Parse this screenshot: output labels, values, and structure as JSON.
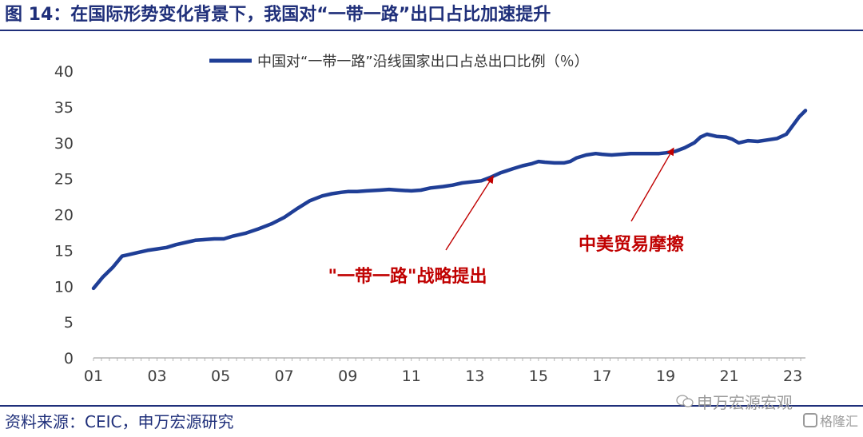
{
  "header": {
    "title": "图 14：在国际形势变化背景下，我国对“一带一路”出口占比加速提升"
  },
  "footer": {
    "source": "资料来源：CEIC，申万宏源研究",
    "watermark_wechat": "申万宏源宏观",
    "watermark_right": "格隆汇"
  },
  "colors": {
    "line": "#1f3e96",
    "title": "#1f2f7a",
    "annotation": "#c00000",
    "axis": "#a6a6a6"
  },
  "chart_data": {
    "type": "line",
    "legend": "中国对“一带一路”沿线国家出口占总出口比例（％）",
    "legend_position": "top-center",
    "grid": false,
    "xlim": [
      2001,
      2023.4
    ],
    "ylim": [
      0,
      40
    ],
    "yticks": [
      "0",
      "5",
      "10",
      "15",
      "20",
      "25",
      "30",
      "35",
      "40"
    ],
    "xtick_labels": [
      "01",
      "03",
      "05",
      "07",
      "09",
      "11",
      "13",
      "15",
      "17",
      "19",
      "21",
      "23"
    ],
    "series": [
      {
        "x": [
          2001.0,
          2001.3,
          2001.6,
          2001.9,
          2002.1,
          2002.4,
          2002.7,
          2003.0,
          2003.3,
          2003.6,
          2003.9,
          2004.2,
          2004.5,
          2004.8,
          2005.1,
          2005.4,
          2005.8,
          2006.2,
          2006.6,
          2007.0,
          2007.4,
          2007.8,
          2008.2,
          2008.5,
          2008.8,
          2009.0,
          2009.3,
          2009.6,
          2010.0,
          2010.3,
          2010.6,
          2011.0,
          2011.3,
          2011.6,
          2012.0,
          2012.3,
          2012.6,
          2013.0,
          2013.2,
          2013.5,
          2013.8,
          2014.0,
          2014.2,
          2014.5,
          2014.8,
          2015.0,
          2015.2,
          2015.5,
          2015.8,
          2016.0,
          2016.2,
          2016.5,
          2016.8,
          2017.0,
          2017.3,
          2017.6,
          2017.9,
          2018.2,
          2018.5,
          2018.8,
          2019.0,
          2019.3,
          2019.6,
          2019.9,
          2020.1,
          2020.3,
          2020.6,
          2020.9,
          2021.1,
          2021.3,
          2021.6,
          2021.9,
          2022.2,
          2022.5,
          2022.8,
          2023.0,
          2023.2,
          2023.4
        ],
        "y": [
          9.7,
          11.3,
          12.6,
          14.2,
          14.4,
          14.7,
          15.0,
          15.2,
          15.4,
          15.8,
          16.1,
          16.4,
          16.5,
          16.6,
          16.6,
          17.0,
          17.4,
          18.0,
          18.7,
          19.6,
          20.8,
          21.9,
          22.6,
          22.9,
          23.1,
          23.2,
          23.2,
          23.3,
          23.4,
          23.5,
          23.4,
          23.3,
          23.4,
          23.7,
          23.9,
          24.1,
          24.4,
          24.6,
          24.7,
          25.2,
          25.8,
          26.1,
          26.4,
          26.8,
          27.1,
          27.4,
          27.3,
          27.2,
          27.2,
          27.4,
          27.9,
          28.3,
          28.5,
          28.4,
          28.3,
          28.4,
          28.5,
          28.5,
          28.5,
          28.5,
          28.6,
          28.8,
          29.3,
          30.0,
          30.8,
          31.2,
          30.9,
          30.8,
          30.5,
          30.0,
          30.3,
          30.2,
          30.4,
          30.6,
          31.2,
          32.4,
          33.6,
          34.5
        ]
      }
    ],
    "annotations": [
      {
        "text": "\"一带一路\"战略提出",
        "x": 2013.3,
        "y": 24.6
      },
      {
        "text": "中美贸易摩擦",
        "x": 2019.1,
        "y": 28.6
      }
    ]
  }
}
